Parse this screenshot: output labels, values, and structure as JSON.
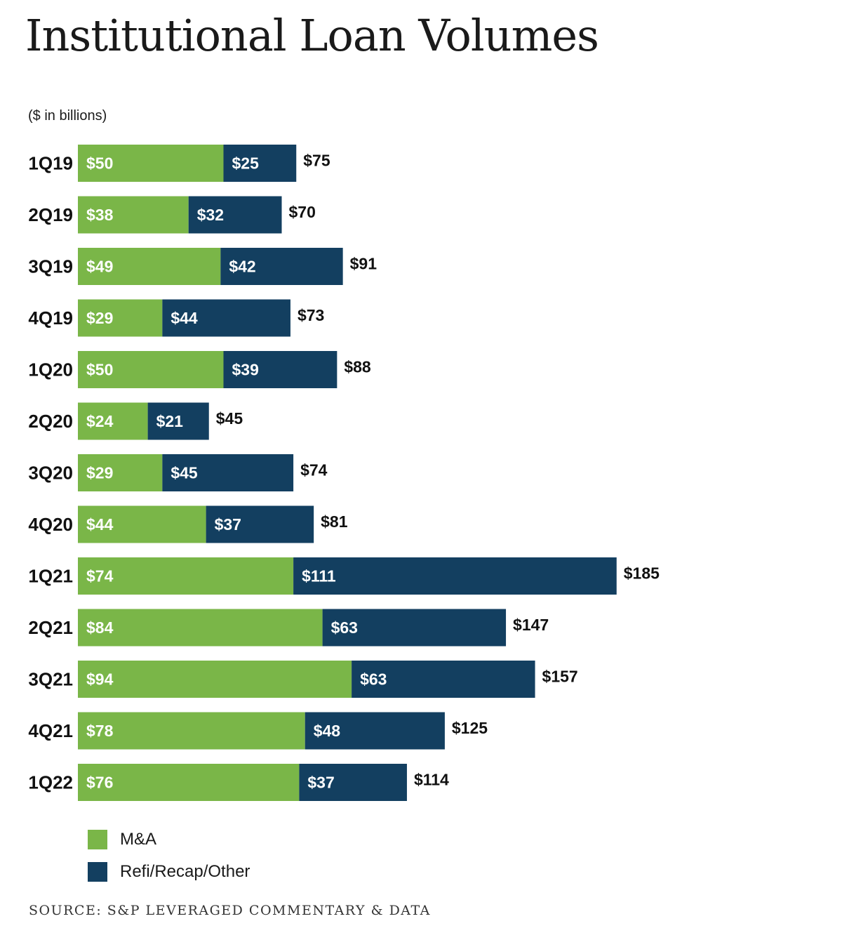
{
  "header": {
    "title": "Institutional Loan Volumes",
    "unit_note": "($ in billions)"
  },
  "chart_data": {
    "type": "bar",
    "orientation": "horizontal",
    "stacked": true,
    "title": "Institutional Loan Volumes",
    "xlabel": "",
    "ylabel": "",
    "unit": "($ in billions)",
    "xlim": [
      0,
      185
    ],
    "categories": [
      "1Q19",
      "2Q19",
      "3Q19",
      "4Q19",
      "1Q20",
      "2Q20",
      "3Q20",
      "4Q20",
      "1Q21",
      "2Q21",
      "3Q21",
      "4Q21",
      "1Q22"
    ],
    "series": [
      {
        "name": "M&A",
        "color": "#7ab648",
        "values": [
          50,
          38,
          49,
          29,
          50,
          24,
          29,
          44,
          74,
          84,
          94,
          78,
          76
        ],
        "labels": [
          "$50",
          "$38",
          "$49",
          "$29",
          "$50",
          "$24",
          "$29",
          "$44",
          "$74",
          "$84",
          "$94",
          "$78",
          "$76"
        ]
      },
      {
        "name": "Refi/Recap/Other",
        "color": "#133f60",
        "values": [
          25,
          32,
          42,
          44,
          39,
          21,
          45,
          37,
          111,
          63,
          63,
          48,
          37
        ],
        "labels": [
          "$25",
          "$32",
          "$42",
          "$44",
          "$39",
          "$21",
          "$45",
          "$37",
          "$111",
          "$63",
          "$63",
          "$48",
          "$37"
        ]
      }
    ],
    "totals": [
      75,
      70,
      91,
      73,
      88,
      45,
      74,
      81,
      185,
      147,
      157,
      125,
      114
    ],
    "total_labels": [
      "$75",
      "$70",
      "$91",
      "$73",
      "$88",
      "$45",
      "$74",
      "$81",
      "$185",
      "$147",
      "$157",
      "$125",
      "$114"
    ],
    "legend_position": "bottom-left",
    "grid": false
  },
  "legend": {
    "items": [
      {
        "label": "M&A",
        "color": "#7ab648"
      },
      {
        "label": "Refi/Recap/Other",
        "color": "#133f60"
      }
    ]
  },
  "footer": {
    "source": "SOURCE: S&P LEVERAGED COMMENTARY & DATA"
  }
}
